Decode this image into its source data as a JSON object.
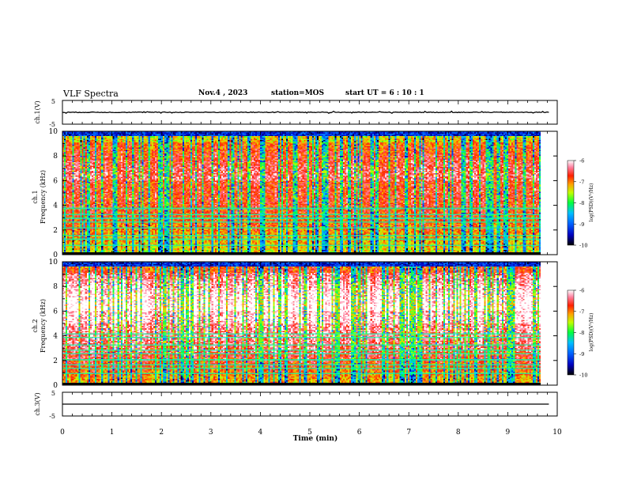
{
  "header": {
    "title": "VLF Spectra",
    "date": "Nov.4 , 2023",
    "station": "station=MOS",
    "start": "start UT =  6 : 10 : 1"
  },
  "chart_data": [
    {
      "type": "line",
      "panel": "ch1-voltage",
      "ylabel": "ch.1(V)",
      "ylim": [
        -5,
        5
      ],
      "yticks": [
        "5",
        "-5"
      ],
      "xlim": [
        0,
        10
      ],
      "series": [
        {
          "baseline": 0,
          "noise_amplitude": 0.15
        }
      ]
    },
    {
      "type": "heatmap",
      "panel": "ch1-spectrogram",
      "ylabel": "ch.1\nFrequency  (kHz)",
      "ylim": [
        0,
        10
      ],
      "yticks": [
        "0",
        "2",
        "4",
        "6",
        "8",
        "10"
      ],
      "xlim": [
        0,
        9.83
      ],
      "colorbar": {
        "label": "log(PSD)(V²/Hz)",
        "range": [
          -10,
          -6
        ],
        "ticks": [
          "-6",
          "-7",
          "-8",
          "-9",
          "-10"
        ]
      },
      "description_values": {
        "dominant_band_khz": [
          0.3,
          9.2
        ],
        "peak_log_psd": -6.5,
        "background_log_psd": -9.5
      }
    },
    {
      "type": "heatmap",
      "panel": "ch2-spectrogram",
      "ylabel": "ch.2\nFrequency  (kHz)",
      "ylim": [
        0,
        10
      ],
      "yticks": [
        "0",
        "2",
        "4",
        "6",
        "8",
        "10"
      ],
      "xlim": [
        0,
        9.83
      ],
      "colorbar": {
        "label": "log(PSD)(V²/Hz)",
        "range": [
          -10,
          -6
        ],
        "ticks": [
          "-6",
          "-7",
          "-8",
          "-9",
          "-10"
        ]
      },
      "description_values": {
        "dominant_band_khz": [
          0.3,
          9.8
        ],
        "peak_log_psd": -6.5,
        "background_log_psd": -9.5
      }
    },
    {
      "type": "line",
      "panel": "ch3-voltage",
      "ylabel": "ch.3(V)",
      "ylim": [
        -5,
        5
      ],
      "yticks": [
        "5",
        "-5"
      ],
      "xlim": [
        0,
        10
      ],
      "series": [
        {
          "baseline": 0,
          "noise_amplitude": 0
        }
      ]
    }
  ],
  "xaxis": {
    "label": "Time  (min)",
    "ticks": [
      "0",
      "1",
      "2",
      "3",
      "4",
      "5",
      "6",
      "7",
      "8",
      "9",
      "10"
    ]
  },
  "colors": {
    "low": "#000080",
    "mid": "#00ff00",
    "high": "#ff0000",
    "top": "#ffffff"
  }
}
